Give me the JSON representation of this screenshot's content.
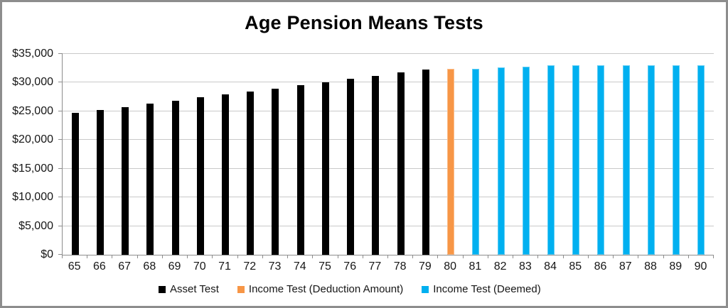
{
  "window": {
    "border_color": "#8d8d8d",
    "background": "#ffffff"
  },
  "chart_data": {
    "type": "bar",
    "title": "Age Pension Means Tests",
    "categories": [
      "65",
      "66",
      "67",
      "68",
      "69",
      "70",
      "71",
      "72",
      "73",
      "74",
      "75",
      "76",
      "77",
      "78",
      "79",
      "80",
      "81",
      "82",
      "83",
      "84",
      "85",
      "86",
      "87",
      "88",
      "89",
      "90"
    ],
    "series": [
      {
        "name": "Asset Test",
        "color": "#000000",
        "edge_color": "#000000",
        "values": [
          24700,
          25200,
          25750,
          26300,
          26850,
          27400,
          27950,
          28450,
          29000,
          29550,
          30100,
          30650,
          31200,
          31750,
          32300,
          null,
          null,
          null,
          null,
          null,
          null,
          null,
          null,
          null,
          null,
          null
        ]
      },
      {
        "name": "Income Test (Deduction Amount)",
        "color": "#f79646",
        "edge_color": "#fbbd8a",
        "values": [
          null,
          null,
          null,
          null,
          null,
          null,
          null,
          null,
          null,
          null,
          null,
          null,
          null,
          null,
          null,
          32400,
          null,
          null,
          null,
          null,
          null,
          null,
          null,
          null,
          null,
          null
        ]
      },
      {
        "name": "Income Test (Deemed)",
        "color": "#00b0f0",
        "edge_color": "#5ecdf4",
        "values": [
          null,
          null,
          null,
          null,
          null,
          null,
          null,
          null,
          null,
          null,
          null,
          null,
          null,
          null,
          null,
          null,
          32400,
          32600,
          32800,
          33000,
          33000,
          33000,
          33000,
          33000,
          33000,
          33000
        ]
      }
    ],
    "xlabel": "",
    "ylabel": "",
    "ylim": [
      0,
      35000
    ],
    "ytick_step": 5000,
    "ytick_labels": [
      "$0",
      "$5,000",
      "$10,000",
      "$15,000",
      "$20,000",
      "$25,000",
      "$30,000",
      "$35,000"
    ],
    "grid": true,
    "gridline_color": "#c9c9c9",
    "axis_color": "#8d8d8d",
    "legend_position": "bottom"
  }
}
